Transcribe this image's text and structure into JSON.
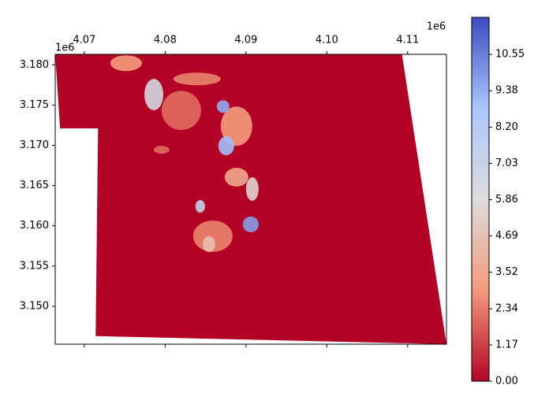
{
  "chart_data": {
    "type": "raster",
    "x_offset_label": "1e6",
    "y_offset_label": "1e6",
    "xlim": [
      4066400,
      4114800
    ],
    "ylim": [
      3145300,
      3181300
    ],
    "xticks": [
      {
        "value": 4070000,
        "label": "4.07"
      },
      {
        "value": 4080000,
        "label": "4.08"
      },
      {
        "value": 4090000,
        "label": "4.09"
      },
      {
        "value": 4100000,
        "label": "4.10"
      },
      {
        "value": 4110000,
        "label": "4.11"
      }
    ],
    "yticks": [
      {
        "value": 3150000,
        "label": "3.150"
      },
      {
        "value": 3155000,
        "label": "3.155"
      },
      {
        "value": 3160000,
        "label": "3.160"
      },
      {
        "value": 3165000,
        "label": "3.165"
      },
      {
        "value": 3170000,
        "label": "3.170"
      },
      {
        "value": 3175000,
        "label": "3.175"
      },
      {
        "value": 3180000,
        "label": "3.180"
      }
    ],
    "clim": [
      0,
      11.75
    ],
    "cticks": [
      {
        "value": 0,
        "label": "0.00"
      },
      1.17,
      2.34,
      3.52,
      4.69,
      5.86,
      7.03,
      {
        "value": 8.2,
        "label": "8.20"
      },
      9.38,
      10.55
    ],
    "colormap": [
      "#b40426",
      "#f49a7b",
      "#dddcdc",
      "#aac7fd",
      "#3b4cc0"
    ],
    "region": {
      "x": [
        4066400,
        4109300,
        4114800,
        4071400,
        4071700,
        4067000
      ],
      "y": [
        3181300,
        3181300,
        3145300,
        3146300,
        3172100,
        3172100
      ],
      "value": 0
    },
    "patches": [
      {
        "cx": 4082000,
        "cy": 3174340,
        "rx": 2440,
        "ry": 2440,
        "value": 2.0
      },
      {
        "cx": 4083950,
        "cy": 3178240,
        "rx": 2930,
        "ry": 780,
        "value": 2.5
      },
      {
        "cx": 4075170,
        "cy": 3180200,
        "rx": 1950,
        "ry": 980,
        "value": 3.0
      },
      {
        "cx": 4088830,
        "cy": 3172380,
        "rx": 1950,
        "ry": 2440,
        "value": 3.0
      },
      {
        "cx": 4085900,
        "cy": 3158710,
        "rx": 2440,
        "ry": 1950,
        "value": 2.5
      },
      {
        "cx": 4088830,
        "cy": 3166040,
        "rx": 1460,
        "ry": 1170,
        "value": 3.5
      },
      {
        "cx": 4079560,
        "cy": 3169450,
        "rx": 980,
        "ry": 490,
        "value": 2.0
      },
      {
        "cx": 4078600,
        "cy": 3176300,
        "rx": 1170,
        "ry": 1950,
        "value": 6.5
      },
      {
        "cx": 4090780,
        "cy": 3164570,
        "rx": 780,
        "ry": 1460,
        "value": 5.5
      },
      {
        "cx": 4085410,
        "cy": 3157730,
        "rx": 780,
        "ry": 980,
        "value": 4.5
      },
      {
        "cx": 4084340,
        "cy": 3162420,
        "rx": 590,
        "ry": 780,
        "value": 7.5
      },
      {
        "cx": 4087170,
        "cy": 3174820,
        "rx": 780,
        "ry": 780,
        "value": 9.5
      },
      {
        "cx": 4087560,
        "cy": 3169940,
        "rx": 980,
        "ry": 1170,
        "value": 9.0
      },
      {
        "cx": 4090590,
        "cy": 3160180,
        "rx": 980,
        "ry": 980,
        "value": 9.8
      }
    ]
  }
}
